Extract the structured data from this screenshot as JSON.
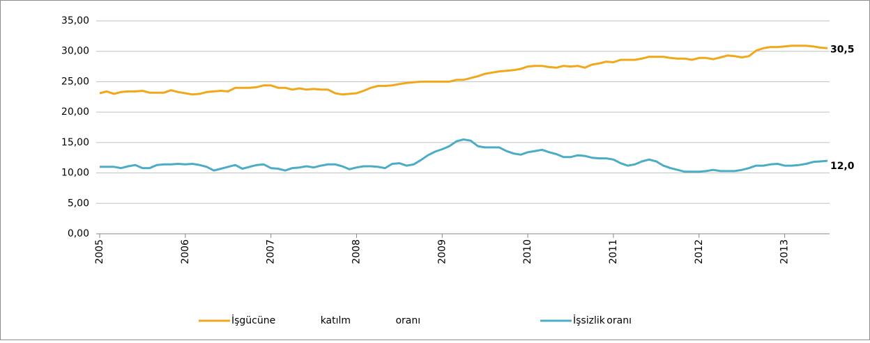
{
  "chart_data": {
    "type": "line",
    "categories": [
      "2005",
      null,
      null,
      null,
      null,
      null,
      null,
      null,
      null,
      null,
      null,
      null,
      "2006",
      null,
      null,
      null,
      null,
      null,
      null,
      null,
      null,
      null,
      null,
      null,
      "2007",
      null,
      null,
      null,
      null,
      null,
      null,
      null,
      null,
      null,
      null,
      null,
      "2008",
      null,
      null,
      null,
      null,
      null,
      null,
      null,
      null,
      null,
      null,
      null,
      "2009",
      null,
      null,
      null,
      null,
      null,
      null,
      null,
      null,
      null,
      null,
      null,
      "2010",
      null,
      null,
      null,
      null,
      null,
      null,
      null,
      null,
      null,
      null,
      null,
      "2011",
      null,
      null,
      null,
      null,
      null,
      null,
      null,
      null,
      null,
      null,
      null,
      "2012",
      null,
      null,
      null,
      null,
      null,
      null,
      null,
      null,
      null,
      null,
      null,
      "2013",
      null,
      null,
      null,
      null,
      null,
      null
    ],
    "series": [
      {
        "name": "İşgücüne katılm oranı",
        "color": "#f2a71b",
        "end_label": "30,5",
        "values": [
          23.1,
          23.4,
          23.0,
          23.3,
          23.4,
          23.4,
          23.5,
          23.2,
          23.2,
          23.2,
          23.6,
          23.3,
          23.1,
          22.9,
          23.0,
          23.3,
          23.4,
          23.5,
          23.4,
          24.0,
          24.0,
          24.0,
          24.1,
          24.4,
          24.4,
          24.0,
          24.0,
          23.7,
          23.9,
          23.7,
          23.8,
          23.7,
          23.7,
          23.1,
          22.9,
          23.0,
          23.1,
          23.5,
          24.0,
          24.3,
          24.3,
          24.4,
          24.6,
          24.8,
          24.9,
          25.0,
          25.0,
          25.0,
          25.0,
          25.0,
          25.3,
          25.3,
          25.6,
          25.9,
          26.3,
          26.5,
          26.7,
          26.8,
          26.9,
          27.1,
          27.5,
          27.6,
          27.6,
          27.4,
          27.3,
          27.6,
          27.5,
          27.6,
          27.3,
          27.8,
          28.0,
          28.3,
          28.2,
          28.6,
          28.6,
          28.6,
          28.8,
          29.1,
          29.1,
          29.1,
          28.9,
          28.8,
          28.8,
          28.6,
          28.9,
          28.9,
          28.7,
          29.0,
          29.3,
          29.2,
          29.0,
          29.2,
          30.1,
          30.5,
          30.7,
          30.7,
          30.8,
          30.9,
          30.9,
          30.9,
          30.8,
          30.6,
          30.5
        ]
      },
      {
        "name": "İşsizlik oranı",
        "color": "#4bacc6",
        "end_label": "12,0",
        "values": [
          11.0,
          11.0,
          11.0,
          10.8,
          11.1,
          11.3,
          10.8,
          10.8,
          11.3,
          11.4,
          11.4,
          11.5,
          11.4,
          11.5,
          11.3,
          11.0,
          10.4,
          10.7,
          11.0,
          11.3,
          10.7,
          11.0,
          11.3,
          11.4,
          10.8,
          10.7,
          10.4,
          10.8,
          10.9,
          11.1,
          10.9,
          11.2,
          11.4,
          11.4,
          11.1,
          10.6,
          10.9,
          11.1,
          11.1,
          11.0,
          10.8,
          11.5,
          11.6,
          11.2,
          11.4,
          12.1,
          12.9,
          13.5,
          13.9,
          14.4,
          15.2,
          15.5,
          15.3,
          14.4,
          14.2,
          14.2,
          14.2,
          13.6,
          13.2,
          13.0,
          13.4,
          13.6,
          13.8,
          13.4,
          13.1,
          12.6,
          12.6,
          12.9,
          12.8,
          12.5,
          12.4,
          12.4,
          12.2,
          11.6,
          11.2,
          11.4,
          11.9,
          12.2,
          11.9,
          11.2,
          10.8,
          10.5,
          10.2,
          10.2,
          10.2,
          10.3,
          10.5,
          10.3,
          10.3,
          10.3,
          10.5,
          10.8,
          11.2,
          11.2,
          11.4,
          11.5,
          11.2,
          11.2,
          11.3,
          11.5,
          11.8,
          11.9,
          12.0
        ]
      }
    ],
    "ylim": [
      0,
      35
    ],
    "yticks": [
      {
        "value": 0,
        "label": "0,00"
      },
      {
        "value": 5,
        "label": "5,00"
      },
      {
        "value": 10,
        "label": "10,00"
      },
      {
        "value": 15,
        "label": "15,00"
      },
      {
        "value": 20,
        "label": "20,00"
      },
      {
        "value": 25,
        "label": "25,00"
      },
      {
        "value": 30,
        "label": "30,00"
      },
      {
        "value": 35,
        "label": "35,00"
      }
    ],
    "grid": true,
    "legend": "bottom"
  }
}
